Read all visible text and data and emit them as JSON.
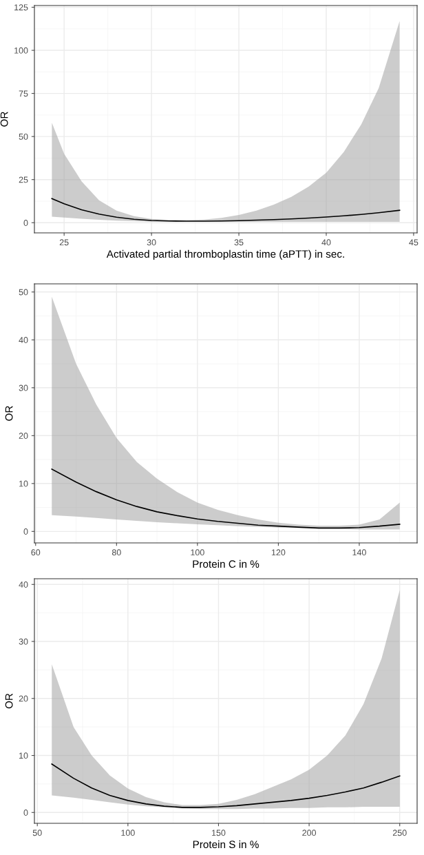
{
  "chart_data": [
    {
      "type": "line",
      "xlabel": "Activated partial thromboplastin time (aPTT) in sec.",
      "ylabel": "OR",
      "xlim": [
        23.3,
        45.2
      ],
      "xticks": [
        25,
        30,
        35,
        40,
        45
      ],
      "ylim": [
        -5.9,
        126
      ],
      "yticks": [
        0,
        25,
        50,
        75,
        100,
        125
      ],
      "grid": true,
      "series": [
        {
          "color": "#000000",
          "x": [
            24.3,
            25,
            26,
            27,
            28,
            29,
            30,
            31,
            32,
            33,
            34,
            35,
            36,
            37,
            38,
            39,
            40,
            41,
            42,
            43,
            44.2
          ],
          "values": [
            14,
            11,
            7.5,
            5,
            3.2,
            2,
            1.3,
            1,
            0.9,
            0.9,
            1,
            1.2,
            1.5,
            1.8,
            2.2,
            2.7,
            3.3,
            4,
            4.8,
            5.8,
            7.2
          ],
          "lower": [
            3.5,
            3,
            2.3,
            1.7,
            1.2,
            0.9,
            0.6,
            0.5,
            0.5,
            0.5,
            0.5,
            0.5,
            0.5,
            0.5,
            0.5,
            0.5,
            0.5,
            0.5,
            0.5,
            0.5,
            0.5
          ],
          "upper": [
            58,
            40,
            24,
            13,
            7,
            3.8,
            2.2,
            1.6,
            1.5,
            1.8,
            2.8,
            4.5,
            7,
            10.5,
            15,
            21,
            29,
            41,
            57,
            78,
            117
          ]
        }
      ]
    },
    {
      "type": "line",
      "xlabel": "Protein C in %",
      "ylabel": "OR",
      "xlim": [
        59.7,
        154.3
      ],
      "xticks": [
        60,
        80,
        100,
        120,
        140
      ],
      "ylim": [
        -2.4,
        51.7
      ],
      "yticks": [
        0,
        10,
        20,
        30,
        40,
        50
      ],
      "grid": true,
      "series": [
        {
          "color": "#000000",
          "x": [
            64,
            70,
            75,
            80,
            85,
            90,
            95,
            100,
            105,
            110,
            115,
            120,
            125,
            130,
            135,
            140,
            145,
            150
          ],
          "values": [
            13,
            10.3,
            8.3,
            6.6,
            5.2,
            4.1,
            3.3,
            2.6,
            2.1,
            1.7,
            1.3,
            1.1,
            0.9,
            0.7,
            0.7,
            0.8,
            1.1,
            1.5
          ],
          "lower": [
            3.4,
            3.1,
            2.8,
            2.5,
            2.2,
            1.9,
            1.7,
            1.5,
            1.3,
            1.1,
            0.95,
            0.8,
            0.7,
            0.5,
            0.5,
            0.4,
            0.4,
            0.4
          ],
          "upper": [
            49,
            35,
            26.5,
            19.5,
            14.5,
            11,
            8.2,
            6,
            4.5,
            3.4,
            2.5,
            1.8,
            1.4,
            1.2,
            1.2,
            1.4,
            2.5,
            6
          ]
        }
      ]
    },
    {
      "type": "line",
      "xlabel": "Protein S in %",
      "ylabel": "OR",
      "xlim": [
        48.4,
        259.6
      ],
      "xticks": [
        50,
        100,
        150,
        200,
        250
      ],
      "ylim": [
        -1.9,
        41
      ],
      "yticks": [
        0,
        10,
        20,
        30,
        40
      ],
      "grid": true,
      "series": [
        {
          "color": "#000000",
          "x": [
            58,
            70,
            80,
            90,
            100,
            110,
            120,
            130,
            140,
            150,
            160,
            170,
            180,
            190,
            200,
            210,
            220,
            230,
            240,
            250
          ],
          "values": [
            8.5,
            6,
            4.3,
            3,
            2.1,
            1.5,
            1.1,
            0.9,
            0.9,
            1,
            1.2,
            1.5,
            1.8,
            2.1,
            2.5,
            3,
            3.6,
            4.3,
            5.3,
            6.4
          ],
          "lower": [
            3,
            2.6,
            2.2,
            1.8,
            1.4,
            1.1,
            0.9,
            0.7,
            0.6,
            0.6,
            0.6,
            0.7,
            0.7,
            0.8,
            0.8,
            0.9,
            0.9,
            1,
            1,
            1
          ],
          "upper": [
            26,
            15,
            10,
            6.5,
            4.2,
            2.7,
            1.8,
            1.3,
            1.3,
            1.5,
            2.2,
            3.2,
            4.5,
            5.8,
            7.5,
            10,
            13.5,
            19,
            27,
            39
          ]
        }
      ]
    }
  ]
}
